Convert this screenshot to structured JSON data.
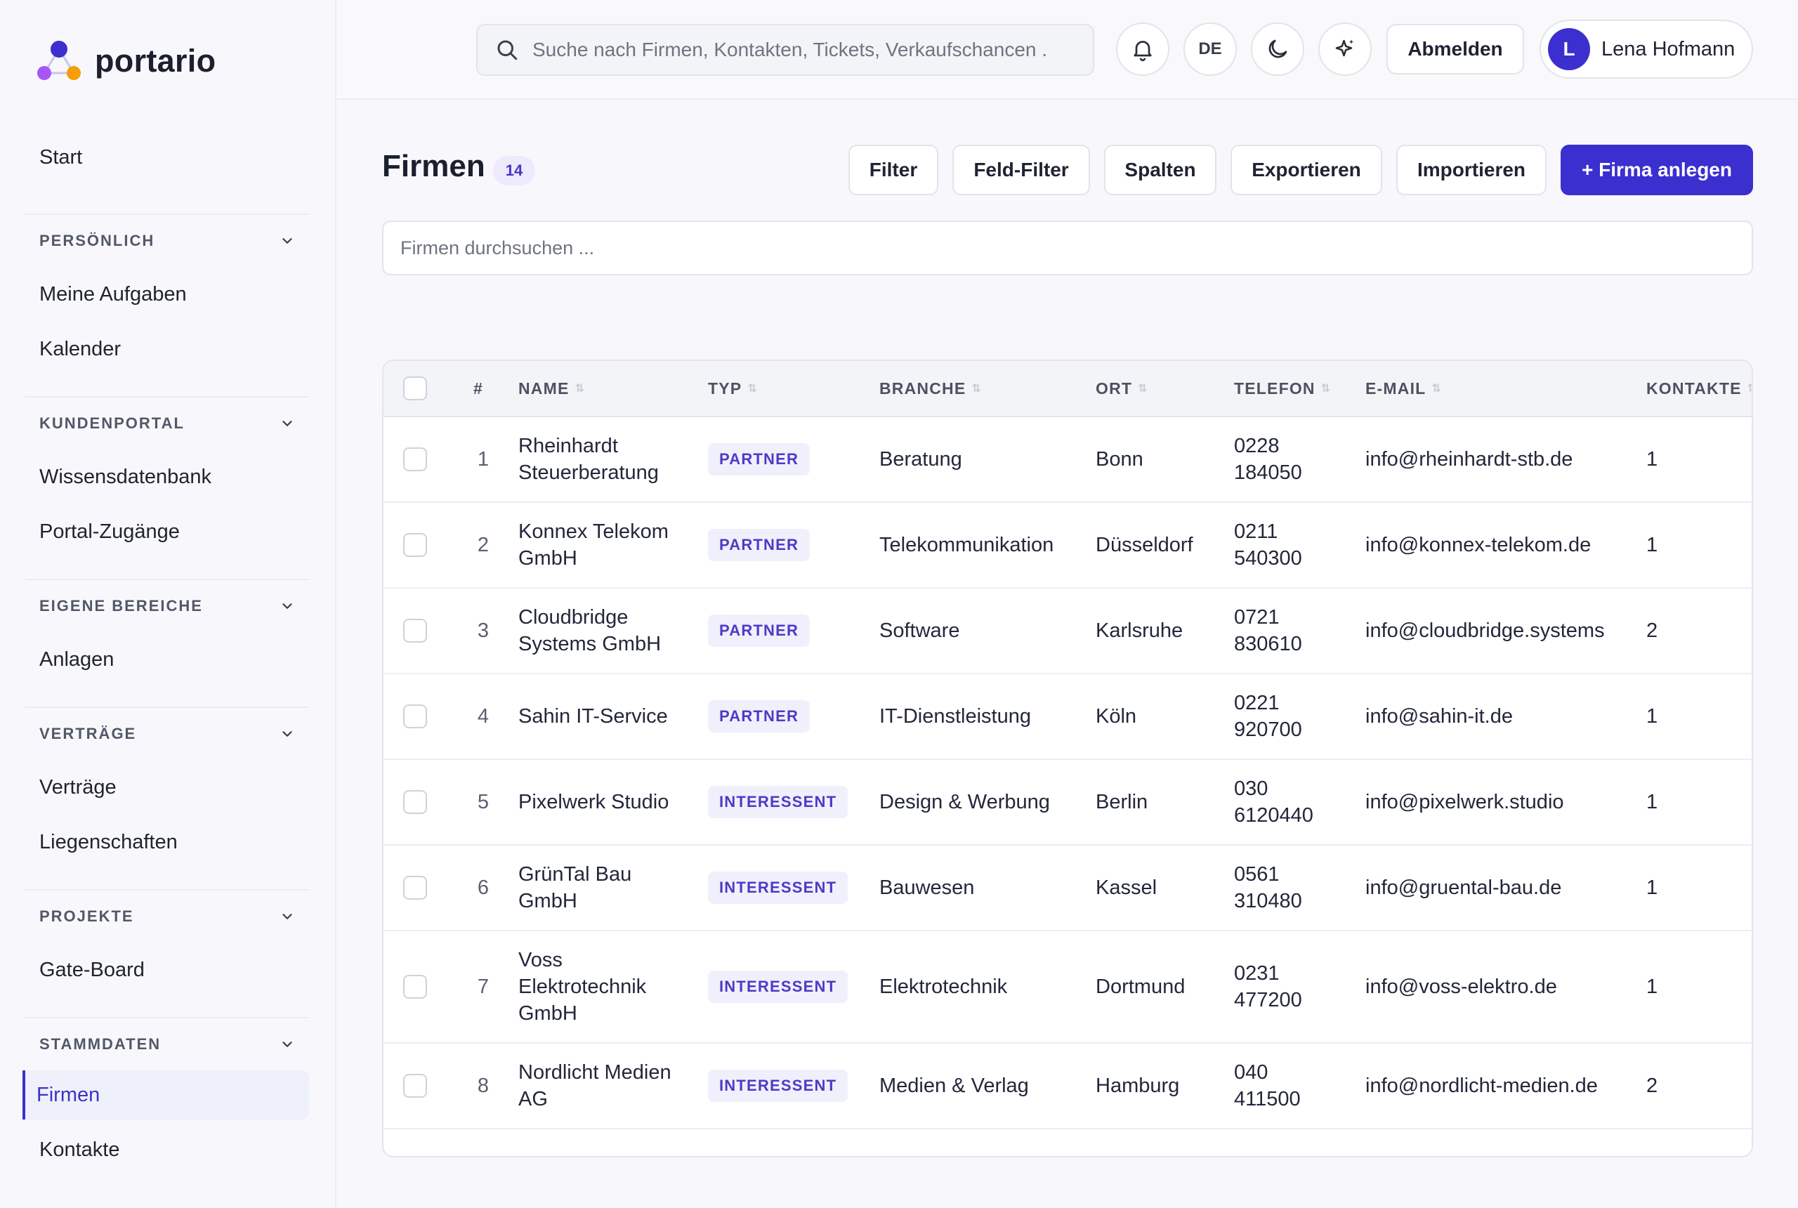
{
  "app": {
    "name": "portario"
  },
  "sidebar": {
    "start": "Start",
    "sections": [
      {
        "title": "PERSÖNLICH",
        "items": [
          "Meine Aufgaben",
          "Kalender"
        ]
      },
      {
        "title": "KUNDENPORTAL",
        "items": [
          "Wissensdatenbank",
          "Portal-Zugänge"
        ]
      },
      {
        "title": "EIGENE BEREICHE",
        "items": [
          "Anlagen"
        ]
      },
      {
        "title": "VERTRÄGE",
        "items": [
          "Verträge",
          "Liegenschaften"
        ]
      },
      {
        "title": "PROJEKTE",
        "items": [
          "Gate-Board"
        ]
      },
      {
        "title": "STAMMDATEN",
        "items": [
          "Firmen",
          "Kontakte"
        ]
      }
    ],
    "active_item": "Firmen"
  },
  "topbar": {
    "search_placeholder": "Suche nach Firmen, Kontakten, Tickets, Verkaufschancen .",
    "language": "DE",
    "logout_label": "Abmelden",
    "user_initial": "L",
    "user_name": "Lena Hofmann"
  },
  "page": {
    "title": "Firmen",
    "count": "14",
    "actions": [
      "Filter",
      "Feld-Filter",
      "Spalten",
      "Exportieren",
      "Importieren"
    ],
    "primary_action": "+ Firma anlegen",
    "filter_placeholder": "Firmen durchsuchen ..."
  },
  "table": {
    "columns": [
      "#",
      "NAME",
      "TYP",
      "BRANCHE",
      "ORT",
      "TELEFON",
      "E-MAIL",
      "KONTAKTE"
    ],
    "rows": [
      {
        "num": "1",
        "name": "Rheinhardt Steuerberatung",
        "type": "PARTNER",
        "branch": "Beratung",
        "city": "Bonn",
        "phone": "0228 184050",
        "email": "info@rheinhardt-stb.de",
        "contacts": "1"
      },
      {
        "num": "2",
        "name": "Konnex Telekom GmbH",
        "type": "PARTNER",
        "branch": "Telekommunikation",
        "city": "Düsseldorf",
        "phone": "0211 540300",
        "email": "info@konnex-telekom.de",
        "contacts": "1"
      },
      {
        "num": "3",
        "name": "Cloudbridge Systems GmbH",
        "type": "PARTNER",
        "branch": "Software",
        "city": "Karlsruhe",
        "phone": "0721 830610",
        "email": "info@cloudbridge.systems",
        "contacts": "2"
      },
      {
        "num": "4",
        "name": "Sahin IT-Service",
        "type": "PARTNER",
        "branch": "IT-Dienstleistung",
        "city": "Köln",
        "phone": "0221 920700",
        "email": "info@sahin-it.de",
        "contacts": "1"
      },
      {
        "num": "5",
        "name": "Pixelwerk Studio",
        "type": "INTERESSENT",
        "branch": "Design & Werbung",
        "city": "Berlin",
        "phone": "030 6120440",
        "email": "info@pixelwerk.studio",
        "contacts": "1"
      },
      {
        "num": "6",
        "name": "GrünTal Bau GmbH",
        "type": "INTERESSENT",
        "branch": "Bauwesen",
        "city": "Kassel",
        "phone": "0561 310480",
        "email": "info@gruental-bau.de",
        "contacts": "1"
      },
      {
        "num": "7",
        "name": "Voss Elektrotechnik GmbH",
        "type": "INTERESSENT",
        "branch": "Elektrotechnik",
        "city": "Dortmund",
        "phone": "0231 477200",
        "email": "info@voss-elektro.de",
        "contacts": "1"
      },
      {
        "num": "8",
        "name": "Nordlicht Medien AG",
        "type": "INTERESSENT",
        "branch": "Medien & Verlag",
        "city": "Hamburg",
        "phone": "040 411500",
        "email": "info@nordlicht-medien.de",
        "contacts": "2"
      }
    ]
  },
  "colors": {
    "accent": "#3b2fd0",
    "badge_text": "#4a3bc7",
    "badge_bg": "#eff0fb"
  }
}
